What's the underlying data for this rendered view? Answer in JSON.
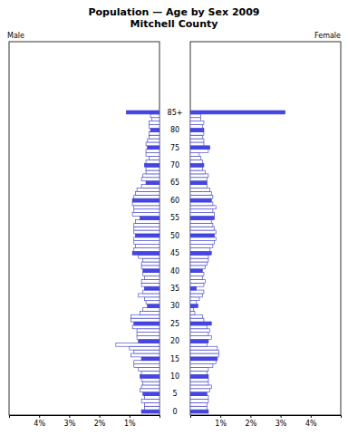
{
  "chart_data": {
    "type": "bar",
    "orientation": "horizontal",
    "title": "Population — Age by Sex 2009",
    "subtitle": "Mitchell County",
    "categories": [
      "0",
      null,
      null,
      null,
      null,
      "5",
      null,
      null,
      null,
      null,
      "10",
      null,
      null,
      null,
      null,
      "15",
      null,
      null,
      null,
      null,
      "20",
      null,
      null,
      null,
      null,
      "25",
      null,
      null,
      null,
      null,
      "30",
      null,
      null,
      null,
      null,
      "35",
      null,
      null,
      null,
      null,
      "40",
      null,
      null,
      null,
      null,
      "45",
      null,
      null,
      null,
      null,
      "50",
      null,
      null,
      null,
      null,
      "55",
      null,
      null,
      null,
      null,
      "60",
      null,
      null,
      null,
      null,
      "65",
      null,
      null,
      null,
      null,
      "70",
      null,
      null,
      null,
      null,
      "75",
      null,
      null,
      null,
      null,
      "80",
      null,
      null,
      null,
      null,
      "85+"
    ],
    "xlim": [
      0,
      5
    ],
    "xticks": [
      {
        "value": 1,
        "label": "1%"
      },
      {
        "value": 2,
        "label": "2%"
      },
      {
        "value": 3,
        "label": "3%"
      },
      {
        "value": 4,
        "label": "4%"
      }
    ],
    "series": [
      {
        "name": "Male",
        "values": [
          0.6,
          0.5,
          0.5,
          0.6,
          0.5,
          0.55,
          0.65,
          0.6,
          0.55,
          0.6,
          0.65,
          0.6,
          0.7,
          0.85,
          0.85,
          0.6,
          0.95,
          0.85,
          1.0,
          1.45,
          0.7,
          0.75,
          0.75,
          0.75,
          0.9,
          0.85,
          0.95,
          0.95,
          0.65,
          0.55,
          0.4,
          0.45,
          0.5,
          0.7,
          0.55,
          0.5,
          0.6,
          0.6,
          0.5,
          0.55,
          0.55,
          0.6,
          0.6,
          0.55,
          0.7,
          0.9,
          0.85,
          0.8,
          0.85,
          0.85,
          0.8,
          0.85,
          0.85,
          0.85,
          0.8,
          0.65,
          0.9,
          0.85,
          0.85,
          0.9,
          0.9,
          0.85,
          0.8,
          0.75,
          0.6,
          0.45,
          0.6,
          0.55,
          0.45,
          0.45,
          0.5,
          0.45,
          0.35,
          0.45,
          0.45,
          0.4,
          0.45,
          0.4,
          0.35,
          0.35,
          0.3,
          0.35,
          0.35,
          0.25,
          0.3,
          1.1
        ],
        "colors": [
          "#4646e8",
          "#ffffff",
          "#ffffff",
          "#ffffff",
          "#ffffff",
          "#4646e8",
          "#ffffff",
          "#ffffff",
          "#ffffff",
          "#ffffff",
          "#4646e8",
          "#ffffff",
          "#ffffff",
          "#ffffff",
          "#ffffff",
          "#4646e8",
          "#ffffff",
          "#ffffff",
          "#ffffff",
          "#ffffff",
          "#4646e8",
          "#ffffff",
          "#ffffff",
          "#ffffff",
          "#ffffff",
          "#4646e8",
          "#ffffff",
          "#ffffff",
          "#ffffff",
          "#ffffff",
          "#4646e8",
          "#ffffff",
          "#ffffff",
          "#ffffff",
          "#ffffff",
          "#4646e8",
          "#ffffff",
          "#ffffff",
          "#ffffff",
          "#ffffff",
          "#4646e8",
          "#ffffff",
          "#ffffff",
          "#ffffff",
          "#ffffff",
          "#4646e8",
          "#ffffff",
          "#ffffff",
          "#ffffff",
          "#ffffff",
          "#4646e8",
          "#ffffff",
          "#ffffff",
          "#ffffff",
          "#ffffff",
          "#4646e8",
          "#ffffff",
          "#ffffff",
          "#ffffff",
          "#ffffff",
          "#4646e8",
          "#ffffff",
          "#ffffff",
          "#ffffff",
          "#ffffff",
          "#4646e8",
          "#ffffff",
          "#ffffff",
          "#ffffff",
          "#ffffff",
          "#4646e8",
          "#ffffff",
          "#ffffff",
          "#ffffff",
          "#ffffff",
          "#4646e8",
          "#ffffff",
          "#ffffff",
          "#ffffff",
          "#ffffff",
          "#4646e8",
          "#ffffff",
          "#ffffff",
          "#ffffff",
          "#ffffff",
          "#4646e8"
        ]
      },
      {
        "name": "Female",
        "values": [
          0.6,
          0.55,
          0.55,
          0.6,
          0.6,
          0.55,
          0.65,
          0.7,
          0.6,
          0.6,
          0.6,
          0.55,
          0.6,
          0.75,
          0.85,
          0.9,
          0.95,
          0.95,
          0.9,
          0.55,
          0.6,
          0.7,
          0.6,
          0.65,
          0.55,
          0.7,
          0.45,
          0.4,
          0.15,
          0.1,
          0.25,
          0.2,
          0.3,
          0.4,
          0.45,
          0.2,
          0.45,
          0.5,
          0.4,
          0.45,
          0.4,
          0.5,
          0.55,
          0.6,
          0.6,
          0.7,
          0.65,
          0.75,
          0.8,
          0.85,
          0.8,
          0.85,
          0.8,
          0.75,
          0.7,
          0.8,
          0.8,
          0.75,
          0.85,
          0.75,
          0.7,
          0.75,
          0.7,
          0.65,
          0.55,
          0.55,
          0.55,
          0.6,
          0.5,
          0.4,
          0.45,
          0.4,
          0.35,
          0.3,
          0.6,
          0.65,
          0.45,
          0.45,
          0.4,
          0.45,
          0.45,
          0.4,
          0.45,
          0.35,
          0.35,
          3.15
        ],
        "colors": [
          "#4646e8",
          "#ffffff",
          "#ffffff",
          "#ffffff",
          "#ffffff",
          "#4646e8",
          "#ffffff",
          "#ffffff",
          "#ffffff",
          "#ffffff",
          "#4646e8",
          "#ffffff",
          "#ffffff",
          "#ffffff",
          "#ffffff",
          "#4646e8",
          "#ffffff",
          "#ffffff",
          "#ffffff",
          "#ffffff",
          "#4646e8",
          "#ffffff",
          "#ffffff",
          "#ffffff",
          "#ffffff",
          "#4646e8",
          "#ffffff",
          "#ffffff",
          "#ffffff",
          "#ffffff",
          "#4646e8",
          "#ffffff",
          "#ffffff",
          "#ffffff",
          "#ffffff",
          "#4646e8",
          "#ffffff",
          "#ffffff",
          "#ffffff",
          "#ffffff",
          "#4646e8",
          "#ffffff",
          "#ffffff",
          "#ffffff",
          "#ffffff",
          "#4646e8",
          "#ffffff",
          "#ffffff",
          "#ffffff",
          "#ffffff",
          "#4646e8",
          "#ffffff",
          "#ffffff",
          "#ffffff",
          "#ffffff",
          "#4646e8",
          "#ffffff",
          "#ffffff",
          "#ffffff",
          "#ffffff",
          "#4646e8",
          "#ffffff",
          "#ffffff",
          "#ffffff",
          "#ffffff",
          "#4646e8",
          "#ffffff",
          "#ffffff",
          "#ffffff",
          "#ffffff",
          "#4646e8",
          "#ffffff",
          "#ffffff",
          "#ffffff",
          "#ffffff",
          "#4646e8",
          "#ffffff",
          "#ffffff",
          "#ffffff",
          "#ffffff",
          "#4646e8",
          "#ffffff",
          "#ffffff",
          "#ffffff",
          "#ffffff",
          "#4646e8"
        ]
      }
    ]
  }
}
